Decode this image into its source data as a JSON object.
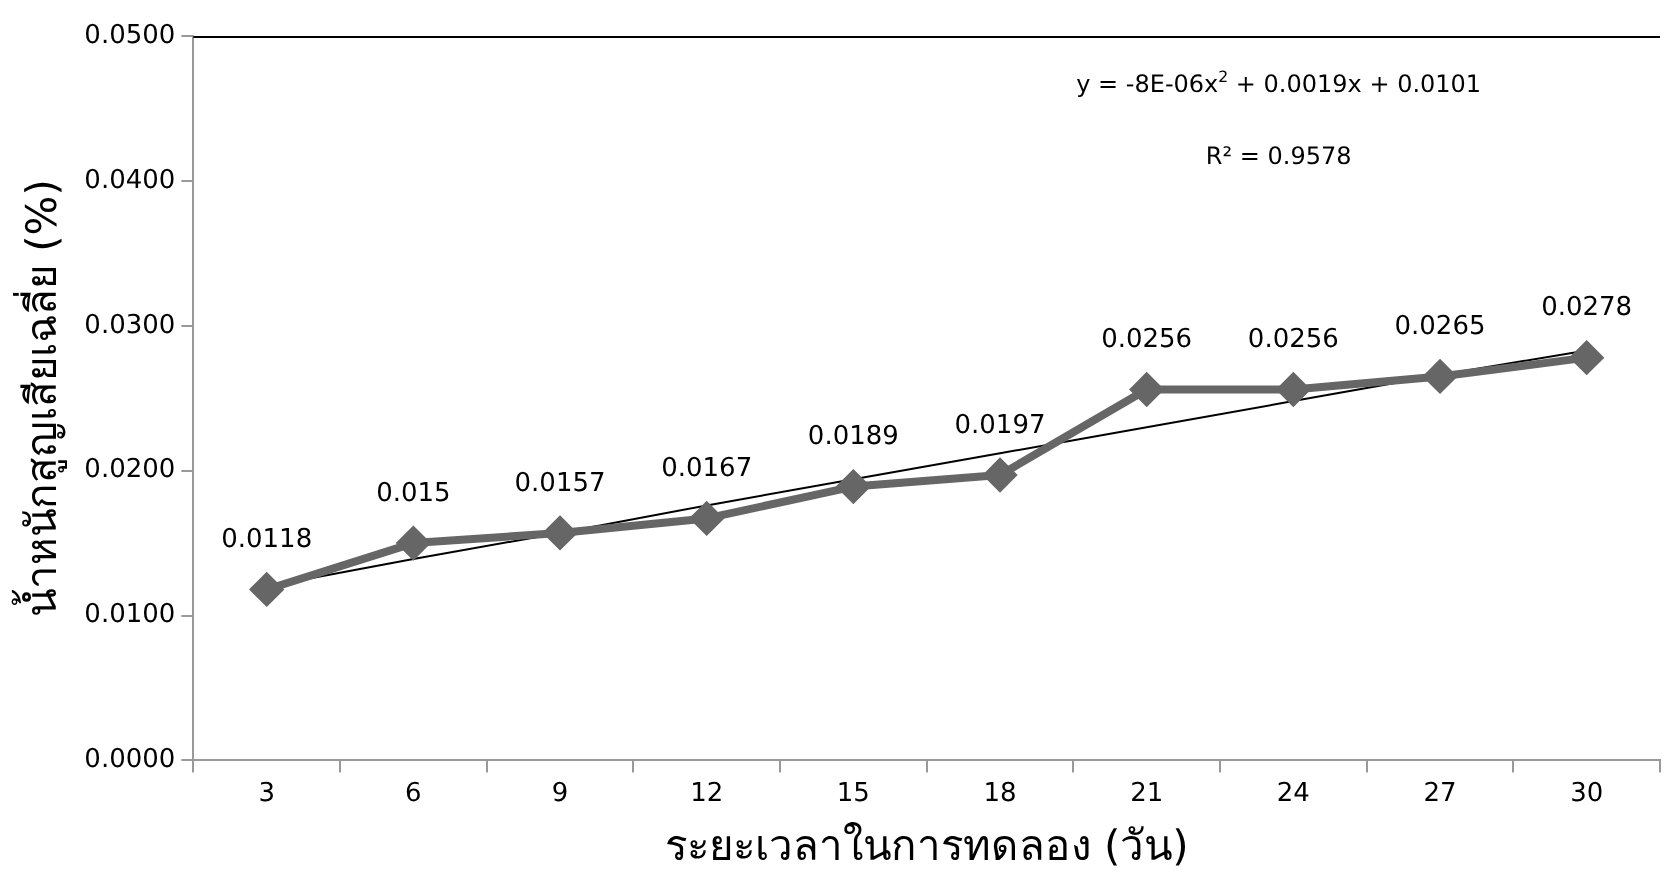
{
  "chart_data": {
    "type": "line",
    "xlabel": "ระยะเวลาในการทดลอง (วัน)",
    "ylabel": "น้ำหนักสูญเสียเฉลี่ย (%)",
    "categories": [
      "3",
      "6",
      "9",
      "12",
      "15",
      "18",
      "21",
      "24",
      "27",
      "30"
    ],
    "series": [
      {
        "color": "#666666",
        "marker": "diamond",
        "values": [
          0.0118,
          0.015,
          0.0157,
          0.0167,
          0.0189,
          0.0197,
          0.0256,
          0.0256,
          0.0265,
          0.0278
        ],
        "value_labels": [
          "0.0118",
          "0.015",
          "0.0157",
          "0.0167",
          "0.0189",
          "0.0197",
          "0.0256",
          "0.0256",
          "0.0265",
          "0.0278"
        ]
      },
      {
        "color": "#000000",
        "marker": "none",
        "values": [
          0.012,
          0.0139,
          0.0157,
          0.0176,
          0.0194,
          0.0212,
          0.023,
          0.0248,
          0.0266,
          0.0283
        ]
      }
    ],
    "ylim": [
      0,
      0.05
    ],
    "yticks": [
      {
        "value": 0,
        "label": "0.0000"
      },
      {
        "value": 0.01,
        "label": "0.0100"
      },
      {
        "value": 0.02,
        "label": "0.0200"
      },
      {
        "value": 0.03,
        "label": "0.0300"
      },
      {
        "value": 0.04,
        "label": "0.0400"
      },
      {
        "value": 0.05,
        "label": "0.0500"
      }
    ],
    "grid": false,
    "legend": false,
    "annotations": [
      "y = -8E-06x$^{2}$ + 0.0019x + 0.0101",
      "R² = 0.9578"
    ]
  }
}
